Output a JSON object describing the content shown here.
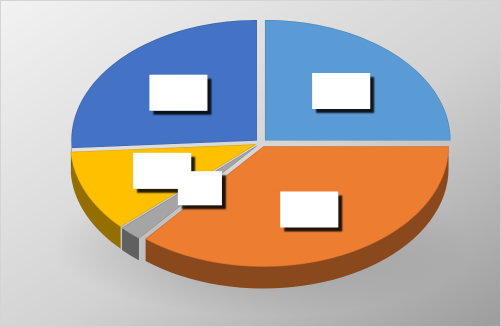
{
  "chart_data": {
    "type": "pie",
    "style": "3d-exploded-tilted",
    "title": "",
    "legend": "none",
    "background": "grey-gradient",
    "slices": [
      {
        "name": "",
        "value": 25.0,
        "color": "#5b9bd5",
        "label": ""
      },
      {
        "name": "",
        "value": 36.0,
        "color": "#ed7d31",
        "label": ""
      },
      {
        "name": "",
        "value": 2.0,
        "color": "#a5a5a5",
        "label": ""
      },
      {
        "name": "",
        "value": 11.0,
        "color": "#ffc000",
        "label": ""
      },
      {
        "name": "",
        "value": 26.0,
        "color": "#4472c4",
        "label": ""
      }
    ]
  }
}
